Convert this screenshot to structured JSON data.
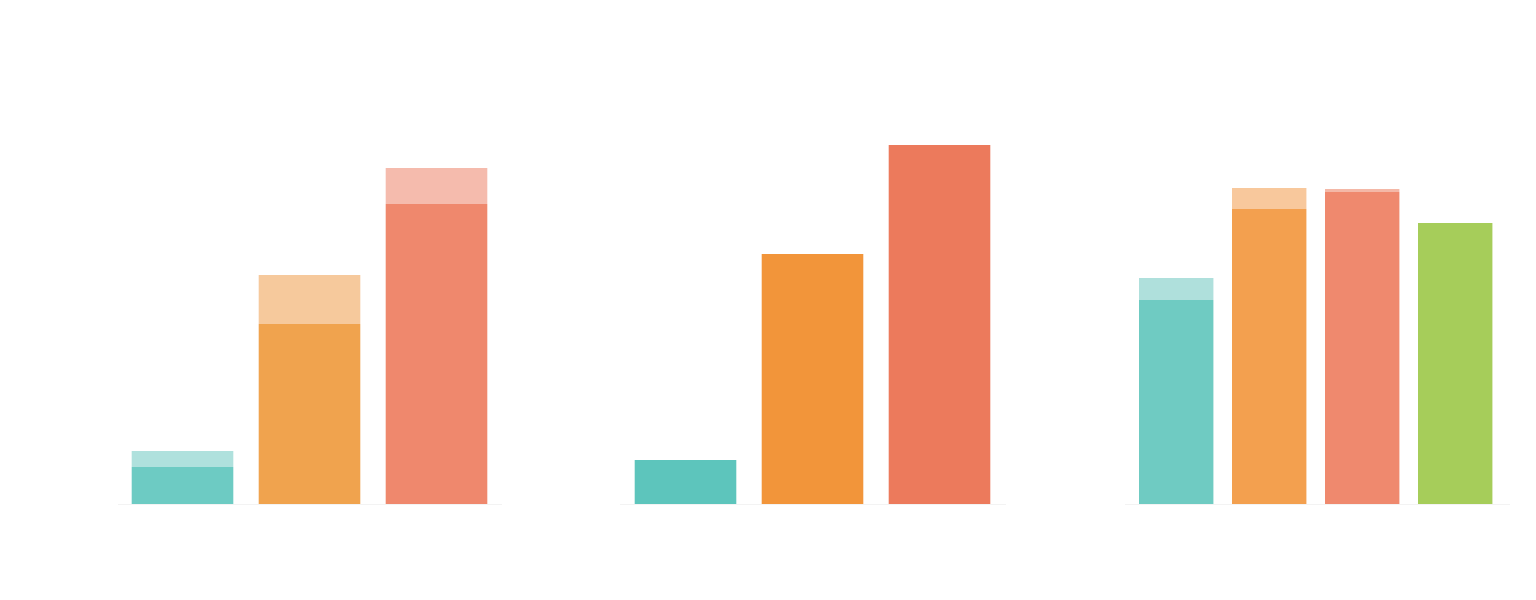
{
  "chart_data": [
    {
      "type": "bar",
      "stacked": true,
      "categories": [
        null,
        null,
        null
      ],
      "ylim": [
        0,
        400
      ],
      "series": [
        {
          "colors": [
            "#6dcbc3",
            "#f0a34e",
            "#ef886d"
          ],
          "values": [
            37,
            180,
            300
          ]
        },
        {
          "colors": [
            "#afe1dd",
            "#f6c99c",
            "#f5bbad"
          ],
          "values": [
            16,
            49,
            36
          ]
        }
      ]
    },
    {
      "type": "bar",
      "stacked": true,
      "categories": [
        null,
        null,
        null
      ],
      "ylim": [
        0,
        400
      ],
      "series": [
        {
          "colors": [
            "#5dc5bc",
            "#f2953a",
            "#ec7a5c"
          ],
          "values": [
            44,
            250,
            359
          ]
        }
      ]
    },
    {
      "type": "bar",
      "stacked": true,
      "categories": [
        null,
        null,
        null,
        null
      ],
      "ylim": [
        0,
        400
      ],
      "series": [
        {
          "colors": [
            "#6fcbc2",
            "#f3a04f",
            "#ef896e",
            "#a6cd5a"
          ],
          "values": [
            204,
            295,
            312,
            281
          ]
        },
        {
          "colors": [
            "#afe0dc",
            "#f8c89c",
            "#f4b8a7",
            null
          ],
          "values": [
            22,
            21,
            3,
            null
          ]
        }
      ]
    }
  ]
}
